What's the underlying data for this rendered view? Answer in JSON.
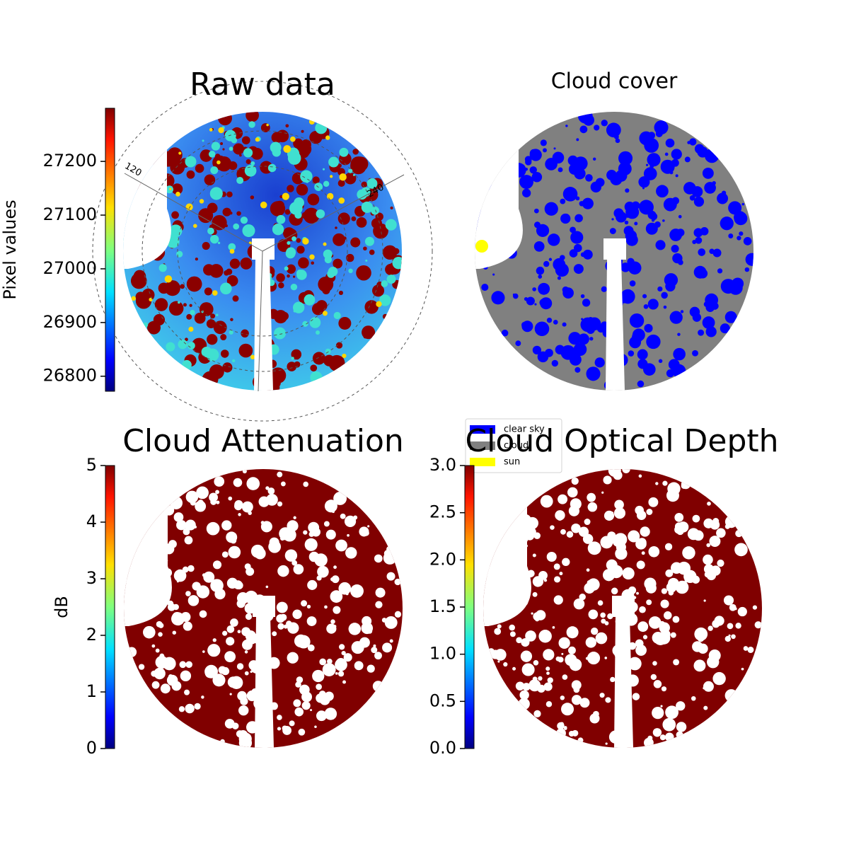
{
  "panels": [
    {
      "title": "Raw data",
      "colorbar": {
        "label": "Pixel values",
        "lim": [
          26772,
          27299
        ],
        "ticks": [
          26800,
          26900,
          27000,
          27100,
          27200
        ]
      },
      "angle_labels": [
        "120",
        "240"
      ]
    },
    {
      "title": "Cloud cover",
      "legend": [
        {
          "label": "clear sky",
          "color": "#0000ff"
        },
        {
          "label": "cloud",
          "color": "#808080"
        },
        {
          "label": "sun",
          "color": "#ffff00"
        }
      ]
    },
    {
      "title": "Cloud Attenuation",
      "colorbar": {
        "label": "dB",
        "lim": [
          0,
          5
        ],
        "ticks": [
          0,
          1,
          2,
          3,
          4,
          5
        ]
      }
    },
    {
      "title": "Cloud Optical Depth",
      "colorbar": {
        "lim": [
          0,
          3
        ],
        "ticks": [
          {
            "value": 0,
            "label": "0.0"
          },
          {
            "value": 0.5,
            "label": "0.5"
          },
          {
            "value": 1,
            "label": "1.0"
          },
          {
            "value": 1.5,
            "label": "1.5"
          },
          {
            "value": 2,
            "label": "2.0"
          },
          {
            "value": 2.5,
            "label": "2.5"
          },
          {
            "value": 3,
            "label": "3.0"
          }
        ]
      }
    }
  ]
}
